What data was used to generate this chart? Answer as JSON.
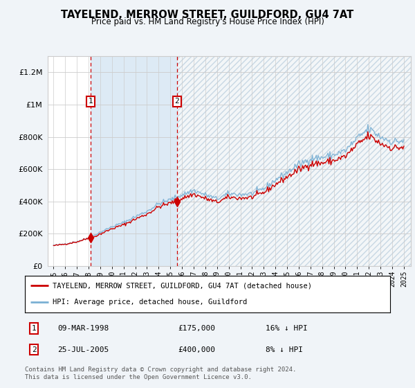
{
  "title": "TAYELEND, MERROW STREET, GUILDFORD, GU4 7AT",
  "subtitle": "Price paid vs. HM Land Registry's House Price Index (HPI)",
  "hpi_label": "HPI: Average price, detached house, Guildford",
  "property_label": "TAYELEND, MERROW STREET, GUILDFORD, GU4 7AT (detached house)",
  "sale1_date": "09-MAR-1998",
  "sale1_price": 175000,
  "sale1_hpi_diff": "16% ↓ HPI",
  "sale2_date": "25-JUL-2005",
  "sale2_price": 400000,
  "sale2_hpi_diff": "8% ↓ HPI",
  "sale1_year": 1998.19,
  "sale2_year": 2005.56,
  "bg_color": "#f0f4f8",
  "plot_bg_color": "#ffffff",
  "hpi_color": "#7ab0d4",
  "property_color": "#cc0000",
  "shade_color": "#ddeaf5",
  "grid_color": "#cccccc",
  "ylim_min": 0,
  "ylim_max": 1300000,
  "yticks": [
    0,
    200000,
    400000,
    600000,
    800000,
    1000000,
    1200000
  ],
  "ytick_labels": [
    "£0",
    "£200K",
    "£400K",
    "£600K",
    "£800K",
    "£1M",
    "£1.2M"
  ],
  "footnote": "Contains HM Land Registry data © Crown copyright and database right 2024.\nThis data is licensed under the Open Government Licence v3.0."
}
